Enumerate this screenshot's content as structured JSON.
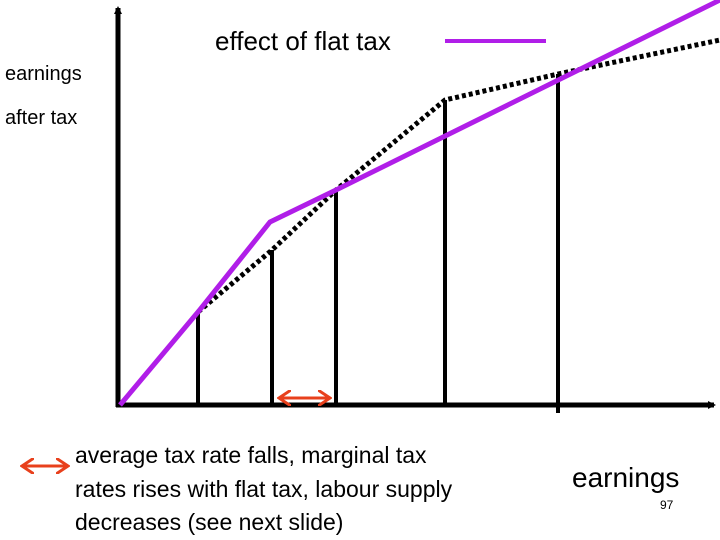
{
  "legend": {
    "label": "effect of flat tax"
  },
  "y_axis": {
    "label_lines": [
      "earnings",
      "after tax"
    ]
  },
  "x_axis": {
    "label": "earnings"
  },
  "note": {
    "lines": [
      "average tax rate falls, marginal tax",
      "rates rises with flat tax, labour supply",
      "decreases (see next slide)"
    ]
  },
  "page_number": "97"
}
